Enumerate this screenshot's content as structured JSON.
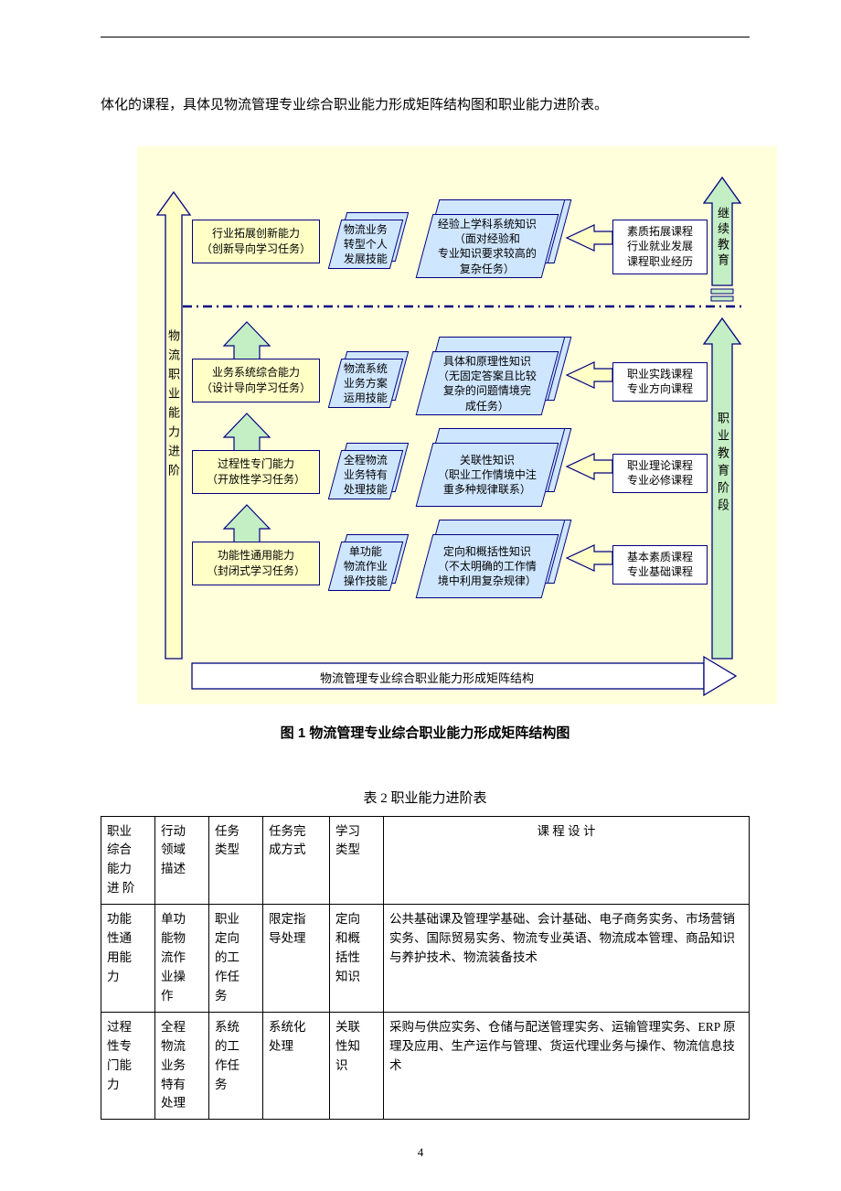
{
  "lead_text": "体化的课程，具体见物流管理专业综合职业能力形成矩阵结构图和职业能力进阶表。",
  "figure": {
    "caption": "图 1  物流管理专业综合职业能力形成矩阵结构图",
    "background_color": "#ffffdc",
    "left_axis_label": "物流职业能力进阶",
    "right_axis_top_label": "继续教育",
    "right_axis_bottom_label": "职业教育阶段",
    "bottom_axis_label": "物流管理专业综合职业能力形成矩阵结构",
    "yellow_col": [
      "行业拓展创新能力\n（创新导向学习任务）",
      "业务系统综合能力\n（设计导向学习任务）",
      "过程性专门能力\n（开放性学习任务）",
      "功能性通用能力\n（封闭式学习任务）"
    ],
    "skill_col": [
      "物流业务\n转型个人\n发展技能",
      "物流系统\n业务方案\n运用技能",
      "全程物流\n业务特有\n处理技能",
      "单功能\n物流作业\n操作技能"
    ],
    "knowledge_col": [
      "经验上学科系统知识\n（面对经验和\n专业知识要求较高的\n复杂任务）",
      "具体和原理性知识\n（无固定答案且比较\n复杂的问题情境完\n成任务）",
      "关联性知识\n（职业工作情境中注\n重多种规律联系）",
      "定向和概括性知识\n（不太明确的工作情\n境中利用复杂规律）"
    ],
    "course_col": [
      "素质拓展课程\n行业就业发展\n课程职业经历",
      "职业实践课程\n专业方向课程",
      "职业理论课程\n专业必修课程",
      "基本素质课程\n专业基础课程"
    ]
  },
  "table": {
    "caption": "表 2  职业能力进阶表",
    "headers": [
      "职业\n综合\n能力\n进  阶",
      "行动\n领域\n描述",
      "任务\n类型",
      "任务完\n成方式",
      "学习\n类型",
      "课  程  设  计"
    ],
    "rows": [
      [
        "功能\n性通\n用能\n力",
        "单功\n能物\n流作\n业操\n作",
        "职业\n定向\n的工\n作任\n务",
        "限定指\n导处理",
        "定向\n和概\n括性\n知识",
        "公共基础课及管理学基础、会计基础、电子商务实务、市场营销实务、国际贸易实务、物流专业英语、物流成本管理、商品知识与养护技术、物流装备技术"
      ],
      [
        "过程\n性专\n门能\n力",
        "全程\n物流\n业务\n特有\n处理",
        "系统\n的工\n作任\n务",
        "系统化\n处理",
        "关联\n性知\n识",
        "采购与供应实务、仓储与配送管理实务、运输管理实务、ERP 原理及应用、生产运作与管理、货运代理业务与操作、物流信息技术"
      ]
    ]
  },
  "page_number": "4",
  "colors": {
    "yellow_fill": "#ffffc6",
    "blue_fill": "#cfe6ff",
    "border": "#000080",
    "green_arrow": "#c4eec4",
    "white": "#ffffff"
  }
}
